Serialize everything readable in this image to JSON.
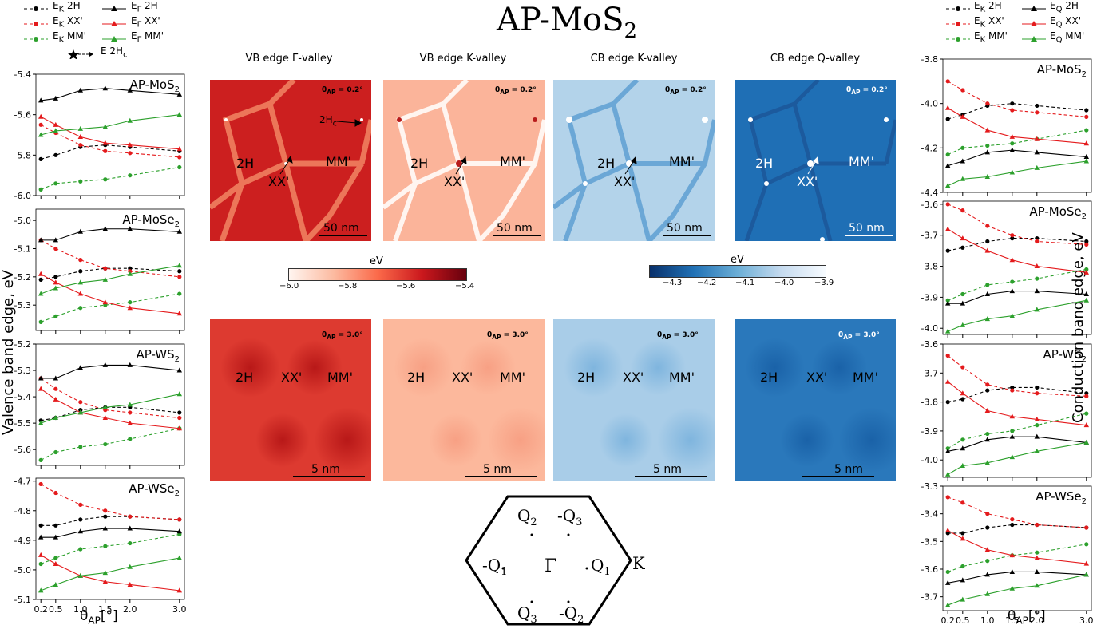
{
  "title": "AP-MoS",
  "title_sub": "2",
  "map_titles": [
    "VB edge Γ-valley",
    "VB edge K-valley",
    "CB edge K-valley",
    "CB edge Q-valley"
  ],
  "theta_small": "0.2",
  "theta_large": "3.0",
  "theta_prefix": "θ",
  "theta_sub": "AP",
  "theta_suffix": " = ",
  "deg": "°",
  "scale_small": "50 nm",
  "scale_large": "5 nm",
  "labels": {
    "h2": "2H",
    "xx": "XX'",
    "mm": "MM'",
    "h2c": "2H",
    "h2c_sub": "c"
  },
  "colorbar_red": {
    "title": "eV",
    "ticks": [
      "−6.0",
      "−5.8",
      "−5.6",
      "−5.4"
    ],
    "colors": [
      "#fff5f0",
      "#fcbba1",
      "#fb6a4a",
      "#cb181d",
      "#67000d"
    ]
  },
  "colorbar_blue": {
    "title": "eV",
    "ticks": [
      "−4.3",
      "−4.2",
      "−4.1",
      "−4.0",
      "−3.9"
    ],
    "colors": [
      "#08306b",
      "#2171b5",
      "#6baed6",
      "#c6dbef",
      "#f7fbff"
    ]
  },
  "bz": {
    "q2": "Q",
    "q2s": "2",
    "mq3": "-Q",
    "mq3s": "3",
    "mq1": "-Q",
    "mq1s": "1",
    "gamma": "Γ",
    "q1": "Q",
    "q1s": "1",
    "k": "K",
    "q3": "Q",
    "q3s": "3",
    "mq2": "-Q",
    "mq2s": "2"
  },
  "legend_left": {
    "items": [
      "E",
      "E",
      "E",
      "E",
      "E",
      "E"
    ],
    "subs": [
      "K",
      "K",
      "K",
      "Γ",
      "Γ",
      "Γ"
    ],
    "suffixes": [
      " 2H",
      " XX'",
      " MM'",
      " 2H",
      " XX'",
      " MM'"
    ],
    "extra": "E  2H",
    "extra_sub": "c"
  },
  "legend_right": {
    "items": [
      "E",
      "E",
      "E",
      "E",
      "E",
      "E"
    ],
    "subs": [
      "K",
      "K",
      "K",
      "Q",
      "Q",
      "Q"
    ],
    "suffixes": [
      " 2H",
      " XX'",
      " MM'",
      " 2H",
      " XX'",
      " MM'"
    ]
  },
  "left_ylabel": "Valence band edge, eV",
  "right_ylabel": "Conduction band edge, eV",
  "xlabel": "θ",
  "xlabel_sub": "AP",
  "xlabel_suffix": "[°]",
  "colors": {
    "black": "#000000",
    "red": "#e41a1c",
    "green": "#2ca02c",
    "red_map": "#cc1f1f",
    "blue_map": "#1f6fb5"
  },
  "chart_data": [
    {
      "type": "line",
      "title": "AP-MoS",
      "title_sub": "2",
      "x": [
        0.2,
        0.5,
        1.0,
        1.5,
        2.0,
        3.0
      ],
      "xlim": [
        0.1,
        3.1
      ],
      "ylim": [
        -6.0,
        -5.4
      ],
      "yticks": [
        "-5.4",
        "-5.6",
        "-5.8",
        "-6.0"
      ],
      "ytickvals": [
        -5.4,
        -5.6,
        -5.8,
        -6.0
      ],
      "xticks": [],
      "series": [
        {
          "name": "EK 2H",
          "values": [
            -5.82,
            -5.8,
            -5.76,
            -5.75,
            -5.76,
            -5.78
          ],
          "color": "#000000",
          "dash": true,
          "marker": "circle"
        },
        {
          "name": "EK XX'",
          "values": [
            -5.65,
            -5.69,
            -5.75,
            -5.78,
            -5.79,
            -5.81
          ],
          "color": "#e41a1c",
          "dash": true,
          "marker": "circle"
        },
        {
          "name": "EK MM'",
          "values": [
            -5.97,
            -5.94,
            -5.93,
            -5.92,
            -5.9,
            -5.86
          ],
          "color": "#2ca02c",
          "dash": true,
          "marker": "circle"
        },
        {
          "name": "EΓ 2H",
          "values": [
            -5.53,
            -5.52,
            -5.48,
            -5.47,
            -5.48,
            -5.5
          ],
          "color": "#000000",
          "dash": false,
          "marker": "triangle"
        },
        {
          "name": "EΓ XX'",
          "values": [
            -5.61,
            -5.65,
            -5.71,
            -5.74,
            -5.75,
            -5.77
          ],
          "color": "#e41a1c",
          "dash": false,
          "marker": "triangle"
        },
        {
          "name": "EΓ MM'",
          "values": [
            -5.7,
            -5.68,
            -5.67,
            -5.66,
            -5.63,
            -5.6
          ],
          "color": "#2ca02c",
          "dash": false,
          "marker": "triangle"
        }
      ]
    },
    {
      "type": "line",
      "title": "AP-MoSe",
      "title_sub": "2",
      "x": [
        0.2,
        0.5,
        1.0,
        1.5,
        2.0,
        3.0
      ],
      "xlim": [
        0.1,
        3.1
      ],
      "ylim": [
        -5.39,
        -4.96
      ],
      "yticks": [
        "-5.0",
        "-5.1",
        "-5.2",
        "-5.3"
      ],
      "ytickvals": [
        -5.0,
        -5.1,
        -5.2,
        -5.3
      ],
      "xticks": [],
      "series": [
        {
          "name": "EK 2H",
          "values": [
            -5.21,
            -5.2,
            -5.18,
            -5.17,
            -5.17,
            -5.18
          ],
          "color": "#000000",
          "dash": true,
          "marker": "circle"
        },
        {
          "name": "EK XX'",
          "values": [
            -5.07,
            -5.1,
            -5.14,
            -5.17,
            -5.18,
            -5.2
          ],
          "color": "#e41a1c",
          "dash": true,
          "marker": "circle"
        },
        {
          "name": "EK MM'",
          "values": [
            -5.36,
            -5.34,
            -5.31,
            -5.3,
            -5.29,
            -5.26
          ],
          "color": "#2ca02c",
          "dash": true,
          "marker": "circle"
        },
        {
          "name": "EΓ 2H",
          "values": [
            -5.07,
            -5.07,
            -5.04,
            -5.03,
            -5.03,
            -5.04
          ],
          "color": "#000000",
          "dash": false,
          "marker": "triangle"
        },
        {
          "name": "EΓ XX'",
          "values": [
            -5.19,
            -5.22,
            -5.26,
            -5.29,
            -5.31,
            -5.33
          ],
          "color": "#e41a1c",
          "dash": false,
          "marker": "triangle"
        },
        {
          "name": "EΓ MM'",
          "values": [
            -5.26,
            -5.24,
            -5.22,
            -5.21,
            -5.19,
            -5.16
          ],
          "color": "#2ca02c",
          "dash": false,
          "marker": "triangle"
        }
      ]
    },
    {
      "type": "line",
      "title": "AP-WS",
      "title_sub": "2",
      "x": [
        0.2,
        0.5,
        1.0,
        1.5,
        2.0,
        3.0
      ],
      "xlim": [
        0.1,
        3.1
      ],
      "ylim": [
        -5.66,
        -5.2
      ],
      "yticks": [
        "-5.2",
        "-5.3",
        "-5.4",
        "-5.5",
        "-5.6"
      ],
      "ytickvals": [
        -5.2,
        -5.3,
        -5.4,
        -5.5,
        -5.6
      ],
      "xticks": [],
      "series": [
        {
          "name": "EK 2H",
          "values": [
            -5.49,
            -5.48,
            -5.45,
            -5.44,
            -5.44,
            -5.46
          ],
          "color": "#000000",
          "dash": true,
          "marker": "circle"
        },
        {
          "name": "EK XX'",
          "values": [
            -5.33,
            -5.37,
            -5.42,
            -5.45,
            -5.46,
            -5.48
          ],
          "color": "#e41a1c",
          "dash": true,
          "marker": "circle"
        },
        {
          "name": "EK MM'",
          "values": [
            -5.64,
            -5.61,
            -5.59,
            -5.58,
            -5.56,
            -5.52
          ],
          "color": "#2ca02c",
          "dash": true,
          "marker": "circle"
        },
        {
          "name": "EΓ 2H",
          "values": [
            -5.33,
            -5.33,
            -5.29,
            -5.28,
            -5.28,
            -5.3
          ],
          "color": "#000000",
          "dash": false,
          "marker": "triangle"
        },
        {
          "name": "EΓ XX'",
          "values": [
            -5.37,
            -5.41,
            -5.46,
            -5.48,
            -5.5,
            -5.52
          ],
          "color": "#e41a1c",
          "dash": false,
          "marker": "triangle"
        },
        {
          "name": "EΓ MM'",
          "values": [
            -5.5,
            -5.48,
            -5.46,
            -5.44,
            -5.43,
            -5.39
          ],
          "color": "#2ca02c",
          "dash": false,
          "marker": "triangle"
        }
      ]
    },
    {
      "type": "line",
      "title": "AP-WSe",
      "title_sub": "2",
      "x": [
        0.2,
        0.5,
        1.0,
        1.5,
        2.0,
        3.0
      ],
      "xlim": [
        0.1,
        3.1
      ],
      "ylim": [
        -5.1,
        -4.69
      ],
      "yticks": [
        "-4.7",
        "-4.8",
        "-4.9",
        "-5.0",
        "-5.1"
      ],
      "ytickvals": [
        -4.7,
        -4.8,
        -4.9,
        -5.0,
        -5.1
      ],
      "xticks": [
        "0.2",
        "0.5",
        "1.0",
        "1.5",
        "2.0",
        "3.0"
      ],
      "series": [
        {
          "name": "EK 2H",
          "values": [
            -4.85,
            -4.85,
            -4.83,
            -4.82,
            -4.82,
            -4.83
          ],
          "color": "#000000",
          "dash": true,
          "marker": "circle"
        },
        {
          "name": "EK XX'",
          "values": [
            -4.71,
            -4.74,
            -4.78,
            -4.8,
            -4.82,
            -4.83
          ],
          "color": "#e41a1c",
          "dash": true,
          "marker": "circle"
        },
        {
          "name": "EK MM'",
          "values": [
            -4.98,
            -4.96,
            -4.93,
            -4.92,
            -4.91,
            -4.88
          ],
          "color": "#2ca02c",
          "dash": true,
          "marker": "circle"
        },
        {
          "name": "EΓ 2H",
          "values": [
            -4.89,
            -4.89,
            -4.87,
            -4.86,
            -4.86,
            -4.87
          ],
          "color": "#000000",
          "dash": false,
          "marker": "triangle"
        },
        {
          "name": "EΓ XX'",
          "values": [
            -4.95,
            -4.98,
            -5.02,
            -5.04,
            -5.05,
            -5.07
          ],
          "color": "#e41a1c",
          "dash": false,
          "marker": "triangle"
        },
        {
          "name": "EΓ MM'",
          "values": [
            -5.07,
            -5.05,
            -5.02,
            -5.01,
            -4.99,
            -4.96
          ],
          "color": "#2ca02c",
          "dash": false,
          "marker": "triangle"
        }
      ]
    },
    {
      "type": "line",
      "title": "AP-MoS",
      "title_sub": "2",
      "x": [
        0.2,
        0.5,
        1.0,
        1.5,
        2.0,
        3.0
      ],
      "xlim": [
        0.1,
        3.1
      ],
      "ylim": [
        -4.4,
        -3.8
      ],
      "yticks": [
        "-3.8",
        "-4.0",
        "-4.2",
        "-4.4"
      ],
      "ytickvals": [
        -3.8,
        -4.0,
        -4.2,
        -4.4
      ],
      "xticks": [],
      "series": [
        {
          "name": "EK 2H",
          "values": [
            -4.07,
            -4.05,
            -4.01,
            -4.0,
            -4.01,
            -4.03
          ],
          "color": "#000000",
          "dash": true,
          "marker": "circle"
        },
        {
          "name": "EK XX'",
          "values": [
            -3.9,
            -3.94,
            -4.0,
            -4.03,
            -4.04,
            -4.06
          ],
          "color": "#e41a1c",
          "dash": true,
          "marker": "circle"
        },
        {
          "name": "EK MM'",
          "values": [
            -4.23,
            -4.2,
            -4.19,
            -4.18,
            -4.16,
            -4.12
          ],
          "color": "#2ca02c",
          "dash": true,
          "marker": "circle"
        },
        {
          "name": "EQ 2H",
          "values": [
            -4.28,
            -4.26,
            -4.22,
            -4.21,
            -4.22,
            -4.24
          ],
          "color": "#000000",
          "dash": false,
          "marker": "triangle"
        },
        {
          "name": "EQ XX'",
          "values": [
            -4.02,
            -4.06,
            -4.12,
            -4.15,
            -4.16,
            -4.18
          ],
          "color": "#e41a1c",
          "dash": false,
          "marker": "triangle"
        },
        {
          "name": "EQ MM'",
          "values": [
            -4.37,
            -4.34,
            -4.33,
            -4.31,
            -4.29,
            -4.26
          ],
          "color": "#2ca02c",
          "dash": false,
          "marker": "triangle"
        }
      ]
    },
    {
      "type": "line",
      "title": "AP-MoSe",
      "title_sub": "2",
      "x": [
        0.2,
        0.5,
        1.0,
        1.5,
        2.0,
        3.0
      ],
      "xlim": [
        0.1,
        3.1
      ],
      "ylim": [
        -4.02,
        -3.59
      ],
      "yticks": [
        "-3.6",
        "-3.7",
        "-3.8",
        "-3.9",
        "-4.0"
      ],
      "ytickvals": [
        -3.6,
        -3.7,
        -3.8,
        -3.9,
        -4.0
      ],
      "xticks": [],
      "series": [
        {
          "name": "EK 2H",
          "values": [
            -3.75,
            -3.74,
            -3.72,
            -3.71,
            -3.71,
            -3.72
          ],
          "color": "#000000",
          "dash": true,
          "marker": "circle"
        },
        {
          "name": "EK XX'",
          "values": [
            -3.6,
            -3.62,
            -3.67,
            -3.7,
            -3.72,
            -3.73
          ],
          "color": "#e41a1c",
          "dash": true,
          "marker": "circle"
        },
        {
          "name": "EK MM'",
          "values": [
            -3.91,
            -3.89,
            -3.86,
            -3.85,
            -3.84,
            -3.81
          ],
          "color": "#2ca02c",
          "dash": true,
          "marker": "circle"
        },
        {
          "name": "EQ 2H",
          "values": [
            -3.92,
            -3.92,
            -3.89,
            -3.88,
            -3.88,
            -3.89
          ],
          "color": "#000000",
          "dash": false,
          "marker": "triangle"
        },
        {
          "name": "EQ XX'",
          "values": [
            -3.68,
            -3.71,
            -3.75,
            -3.78,
            -3.8,
            -3.82
          ],
          "color": "#e41a1c",
          "dash": false,
          "marker": "triangle"
        },
        {
          "name": "EQ MM'",
          "values": [
            -4.01,
            -3.99,
            -3.97,
            -3.96,
            -3.94,
            -3.91
          ],
          "color": "#2ca02c",
          "dash": false,
          "marker": "triangle"
        }
      ]
    },
    {
      "type": "line",
      "title": "AP-WS",
      "title_sub": "2",
      "x": [
        0.2,
        0.5,
        1.0,
        1.5,
        2.0,
        3.0
      ],
      "xlim": [
        0.1,
        3.1
      ],
      "ylim": [
        -4.06,
        -3.6
      ],
      "yticks": [
        "-3.6",
        "-3.7",
        "-3.8",
        "-3.9",
        "-4.0"
      ],
      "ytickvals": [
        -3.6,
        -3.7,
        -3.8,
        -3.9,
        -4.0
      ],
      "xticks": [],
      "series": [
        {
          "name": "EK 2H",
          "values": [
            -3.8,
            -3.79,
            -3.76,
            -3.75,
            -3.75,
            -3.77
          ],
          "color": "#000000",
          "dash": true,
          "marker": "circle"
        },
        {
          "name": "EK XX'",
          "values": [
            -3.64,
            -3.68,
            -3.74,
            -3.76,
            -3.77,
            -3.78
          ],
          "color": "#e41a1c",
          "dash": true,
          "marker": "circle"
        },
        {
          "name": "EK MM'",
          "values": [
            -3.96,
            -3.93,
            -3.91,
            -3.9,
            -3.88,
            -3.84
          ],
          "color": "#2ca02c",
          "dash": true,
          "marker": "circle"
        },
        {
          "name": "EQ 2H",
          "values": [
            -3.97,
            -3.96,
            -3.93,
            -3.92,
            -3.92,
            -3.94
          ],
          "color": "#000000",
          "dash": false,
          "marker": "triangle"
        },
        {
          "name": "EQ XX'",
          "values": [
            -3.73,
            -3.77,
            -3.83,
            -3.85,
            -3.86,
            -3.88
          ],
          "color": "#e41a1c",
          "dash": false,
          "marker": "triangle"
        },
        {
          "name": "EQ MM'",
          "values": [
            -4.05,
            -4.02,
            -4.01,
            -3.99,
            -3.97,
            -3.94
          ],
          "color": "#2ca02c",
          "dash": false,
          "marker": "triangle"
        }
      ]
    },
    {
      "type": "line",
      "title": "AP-WSe",
      "title_sub": "2",
      "x": [
        0.2,
        0.5,
        1.0,
        1.5,
        2.0,
        3.0
      ],
      "xlim": [
        0.1,
        3.1
      ],
      "ylim": [
        -3.75,
        -3.3
      ],
      "yticks": [
        "-3.3",
        "-3.4",
        "-3.5",
        "-3.6",
        "-3.7"
      ],
      "ytickvals": [
        -3.3,
        -3.4,
        -3.5,
        -3.6,
        -3.7
      ],
      "xticks": [
        "0.2",
        "0.5",
        "1.0",
        "1.5",
        "2.0",
        "3.0"
      ],
      "series": [
        {
          "name": "EK 2H",
          "values": [
            -3.47,
            -3.47,
            -3.45,
            -3.44,
            -3.44,
            -3.45
          ],
          "color": "#000000",
          "dash": true,
          "marker": "circle"
        },
        {
          "name": "EK XX'",
          "values": [
            -3.34,
            -3.36,
            -3.4,
            -3.42,
            -3.44,
            -3.45
          ],
          "color": "#e41a1c",
          "dash": true,
          "marker": "circle"
        },
        {
          "name": "EK MM'",
          "values": [
            -3.61,
            -3.59,
            -3.57,
            -3.55,
            -3.54,
            -3.51
          ],
          "color": "#2ca02c",
          "dash": true,
          "marker": "circle"
        },
        {
          "name": "EQ 2H",
          "values": [
            -3.65,
            -3.64,
            -3.62,
            -3.61,
            -3.61,
            -3.62
          ],
          "color": "#000000",
          "dash": false,
          "marker": "triangle"
        },
        {
          "name": "EQ XX'",
          "values": [
            -3.46,
            -3.49,
            -3.53,
            -3.55,
            -3.56,
            -3.58
          ],
          "color": "#e41a1c",
          "dash": false,
          "marker": "triangle"
        },
        {
          "name": "EQ MM'",
          "values": [
            -3.73,
            -3.71,
            -3.69,
            -3.67,
            -3.66,
            -3.62
          ],
          "color": "#2ca02c",
          "dash": false,
          "marker": "triangle"
        }
      ]
    }
  ]
}
